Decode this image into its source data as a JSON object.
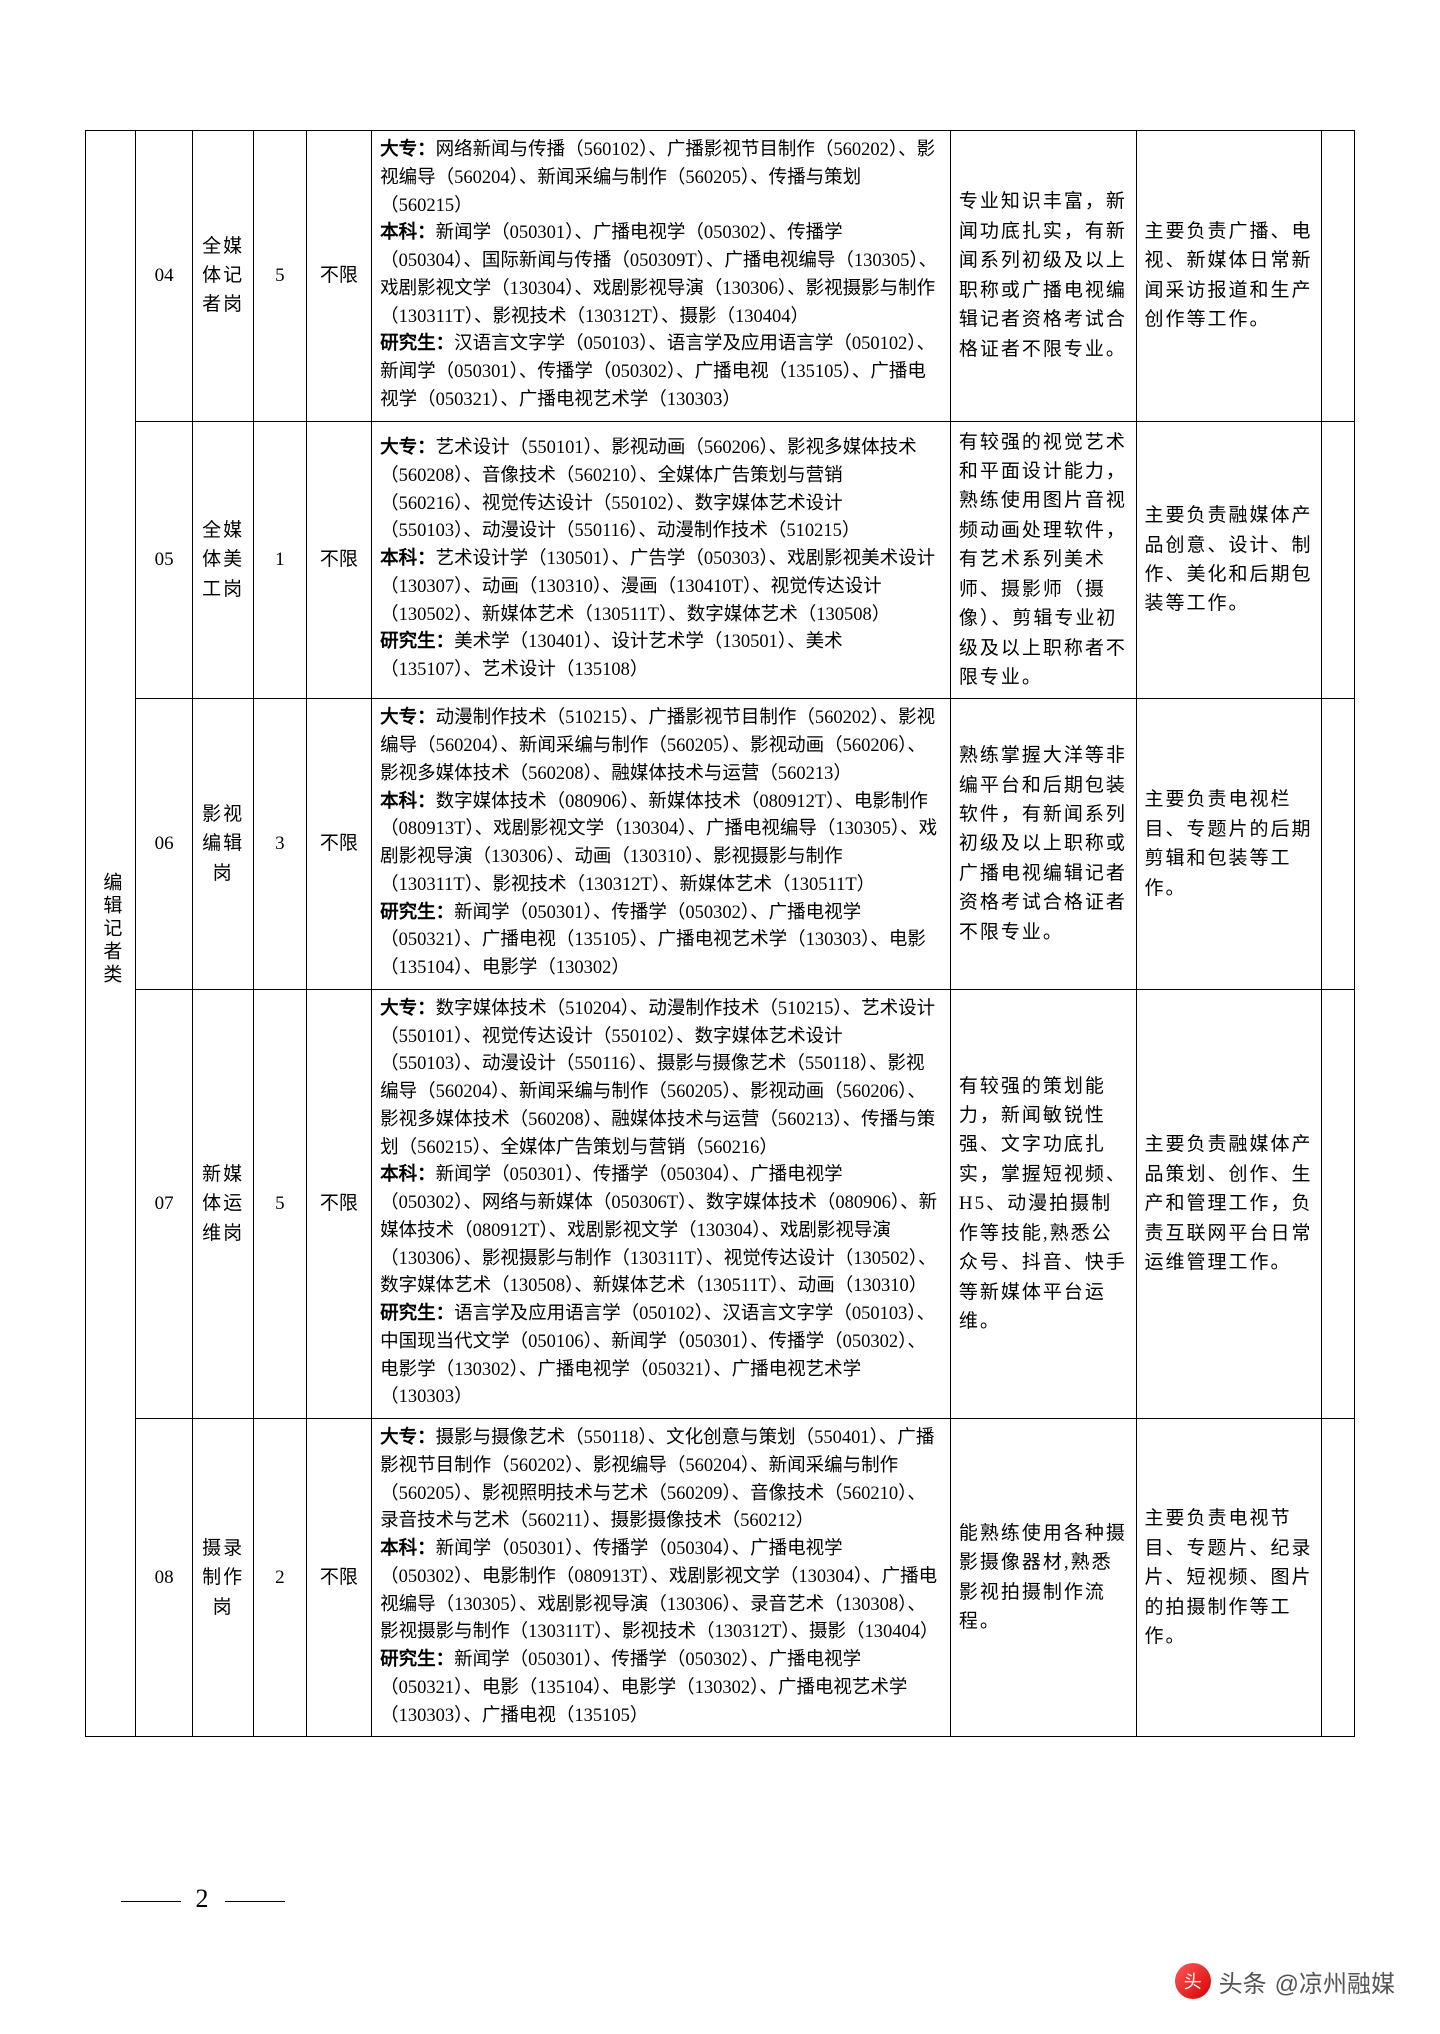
{
  "page_number": "2",
  "category_label": "编辑记者类",
  "watermark": {
    "prefix": "头条",
    "account": "@凉州融媒"
  },
  "rows": [
    {
      "code": "04",
      "job": "全媒体记者岗",
      "count": "5",
      "limit": "不限",
      "major_dz": "网络新闻与传播（560102）、广播影视节目制作（560202）、影视编导（560204）、新闻采编与制作（560205）、传播与策划（560215）",
      "major_bk": "新闻学（050301）、广播电视学（050302）、传播学（050304）、国际新闻与传播（050309T）、广播电视编导（130305）、戏剧影视文学（130304）、戏剧影视导演（130306）、影视摄影与制作（130311T）、影视技术（130312T）、摄影（130404）",
      "major_yj": "汉语言文字学（050103）、语言学及应用语言学（050102）、新闻学（050301）、传播学（050302）、广播电视（135105）、广播电视学（050321）、广播电视艺术学（130303）",
      "req": "专业知识丰富，新闻功底扎实，有新闻系列初级及以上职称或广播电视编辑记者资格考试合格证者不限专业。",
      "duty": "主要负责广播、电视、新媒体日常新闻采访报道和生产创作等工作。"
    },
    {
      "code": "05",
      "job": "全媒体美工岗",
      "count": "1",
      "limit": "不限",
      "major_dz": "艺术设计（550101）、影视动画（560206）、影视多媒体技术（560208）、音像技术（560210）、全媒体广告策划与营销（560216）、视觉传达设计（550102）、数字媒体艺术设计（550103）、动漫设计（550116）、动漫制作技术（510215）",
      "major_bk": "艺术设计学（130501）、广告学（050303）、戏剧影视美术设计（130307）、动画（130310）、漫画（130410T）、视觉传达设计（130502）、新媒体艺术（130511T）、数字媒体艺术（130508）",
      "major_yj": "美术学（130401）、设计艺术学（130501）、美术（135107）、艺术设计（135108）",
      "req": "有较强的视觉艺术和平面设计能力，熟练使用图片音视频动画处理软件，有艺术系列美术师、摄影师（摄像）、剪辑专业初级及以上职称者不限专业。",
      "duty": "主要负责融媒体产品创意、设计、制作、美化和后期包装等工作。"
    },
    {
      "code": "06",
      "job": "影视编辑岗",
      "count": "3",
      "limit": "不限",
      "major_dz": "动漫制作技术（510215）、广播影视节目制作（560202）、影视编导（560204）、新闻采编与制作（560205）、影视动画（560206）、影视多媒体技术（560208）、融媒体技术与运营（560213）",
      "major_bk": "数字媒体技术（080906）、新媒体技术（080912T）、电影制作（080913T）、戏剧影视文学（130304）、广播电视编导（130305）、戏剧影视导演（130306）、动画（130310）、影视摄影与制作（130311T）、影视技术（130312T）、新媒体艺术（130511T）",
      "major_yj": "新闻学（050301）、传播学（050302）、广播电视学（050321）、广播电视（135105）、广播电视艺术学（130303）、电影（135104）、电影学（130302）",
      "req": "熟练掌握大洋等非编平台和后期包装软件，有新闻系列初级及以上职称或广播电视编辑记者资格考试合格证者不限专业。",
      "duty": "主要负责电视栏目、专题片的后期剪辑和包装等工作。"
    },
    {
      "code": "07",
      "job": "新媒体运维岗",
      "count": "5",
      "limit": "不限",
      "major_dz": "数字媒体技术（510204）、动漫制作技术（510215）、艺术设计（550101）、视觉传达设计（550102）、数字媒体艺术设计（550103）、动漫设计（550116）、摄影与摄像艺术（550118）、影视编导（560204）、新闻采编与制作（560205）、影视动画（560206）、影视多媒体技术（560208）、融媒体技术与运营（560213）、传播与策划（560215）、全媒体广告策划与营销（560216）",
      "major_bk": "新闻学（050301）、传播学（050304）、广播电视学（050302）、网络与新媒体（050306T）、数字媒体技术（080906）、新媒体技术（080912T）、戏剧影视文学（130304）、戏剧影视导演（130306）、影视摄影与制作（130311T）、视觉传达设计（130502）、数字媒体艺术（130508）、新媒体艺术（130511T）、动画（130310）",
      "major_yj": "语言学及应用语言学（050102）、汉语言文字学（050103）、中国现当代文学（050106）、新闻学（050301）、传播学（050302）、电影学（130302）、广播电视学（050321）、广播电视艺术学（130303）",
      "req": "有较强的策划能力，新闻敏锐性强、文字功底扎实，掌握短视频、H5、动漫拍摄制作等技能,熟悉公众号、抖音、快手等新媒体平台运维。",
      "duty": "主要负责融媒体产品策划、创作、生产和管理工作，负责互联网平台日常运维管理工作。"
    },
    {
      "code": "08",
      "job": "摄录制作岗",
      "count": "2",
      "limit": "不限",
      "major_dz": "摄影与摄像艺术（550118）、文化创意与策划（550401）、广播影视节目制作（560202）、影视编导（560204）、新闻采编与制作（560205）、影视照明技术与艺术（560209）、音像技术（560210）、录音技术与艺术（560211）、摄影摄像技术（560212）",
      "major_bk": "新闻学（050301）、传播学（050304）、广播电视学（050302）、电影制作（080913T）、戏剧影视文学（130304）、广播电视编导（130305）、戏剧影视导演（130306）、录音艺术（130308）、影视摄影与制作（130311T）、影视技术（130312T）、摄影（130404）",
      "major_yj": "新闻学（050301）、传播学（050302）、广播电视学（050321）、电影（135104）、电影学（130302）、广播电视艺术学（130303）、广播电视（135105）",
      "req": "能熟练使用各种摄影摄像器材,熟悉影视拍摄制作流程。",
      "duty": "主要负责电视节目、专题片、纪录片、短视频、图片的拍摄制作等工作。"
    }
  ]
}
